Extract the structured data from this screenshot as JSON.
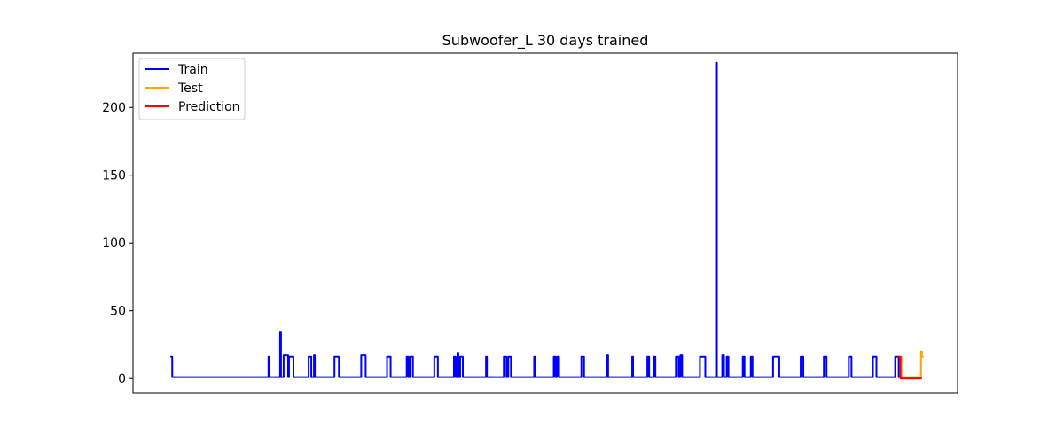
{
  "chart_data": {
    "type": "line",
    "title": "Subwoofer_L 30 days trained",
    "xlabel": "",
    "ylabel": "",
    "x_tick_labels_visible": false,
    "xlim": [
      0,
      925
    ],
    "ylim": [
      -11,
      240
    ],
    "yticks": [
      0,
      50,
      100,
      150,
      200
    ],
    "grid": false,
    "legend": {
      "position": "top-left"
    },
    "series": [
      {
        "name": "Train",
        "color": "#0000ff",
        "points": [
          [
            42,
            16
          ],
          [
            44,
            16
          ],
          [
            44,
            1
          ],
          [
            152,
            1
          ],
          [
            152,
            16
          ],
          [
            153,
            16
          ],
          [
            153,
            1
          ],
          [
            165,
            1
          ],
          [
            165,
            34
          ],
          [
            166,
            34
          ],
          [
            166,
            1
          ],
          [
            169,
            1
          ],
          [
            169,
            17
          ],
          [
            174,
            17
          ],
          [
            174,
            1
          ],
          [
            175,
            1
          ],
          [
            175,
            16
          ],
          [
            180,
            16
          ],
          [
            180,
            1
          ],
          [
            197,
            1
          ],
          [
            197,
            16
          ],
          [
            200,
            16
          ],
          [
            200,
            1
          ],
          [
            203,
            1
          ],
          [
            203,
            17
          ],
          [
            204,
            17
          ],
          [
            204,
            1
          ],
          [
            226,
            1
          ],
          [
            226,
            16
          ],
          [
            231,
            16
          ],
          [
            231,
            1
          ],
          [
            256,
            1
          ],
          [
            256,
            17
          ],
          [
            261,
            17
          ],
          [
            261,
            1
          ],
          [
            285,
            1
          ],
          [
            285,
            16
          ],
          [
            289,
            16
          ],
          [
            289,
            1
          ],
          [
            307,
            1
          ],
          [
            307,
            16
          ],
          [
            309,
            16
          ],
          [
            309,
            1
          ],
          [
            311,
            1
          ],
          [
            311,
            16
          ],
          [
            314,
            16
          ],
          [
            314,
            1
          ],
          [
            338,
            1
          ],
          [
            338,
            16
          ],
          [
            342,
            16
          ],
          [
            342,
            1
          ],
          [
            360,
            1
          ],
          [
            360,
            16
          ],
          [
            362,
            16
          ],
          [
            362,
            1
          ],
          [
            364,
            1
          ],
          [
            364,
            19
          ],
          [
            365,
            19
          ],
          [
            365,
            1
          ],
          [
            367,
            1
          ],
          [
            367,
            16
          ],
          [
            370,
            16
          ],
          [
            370,
            1
          ],
          [
            396,
            1
          ],
          [
            396,
            16
          ],
          [
            397,
            16
          ],
          [
            397,
            1
          ],
          [
            416,
            1
          ],
          [
            416,
            16
          ],
          [
            419,
            16
          ],
          [
            419,
            1
          ],
          [
            421,
            1
          ],
          [
            421,
            16
          ],
          [
            424,
            16
          ],
          [
            424,
            1
          ],
          [
            450,
            1
          ],
          [
            450,
            16
          ],
          [
            451,
            16
          ],
          [
            451,
            1
          ],
          [
            472,
            1
          ],
          [
            472,
            16
          ],
          [
            474,
            16
          ],
          [
            474,
            1
          ],
          [
            476,
            1
          ],
          [
            476,
            16
          ],
          [
            478,
            16
          ],
          [
            478,
            1
          ],
          [
            503,
            1
          ],
          [
            503,
            16
          ],
          [
            506,
            16
          ],
          [
            506,
            1
          ],
          [
            532,
            1
          ],
          [
            532,
            17
          ],
          [
            533,
            17
          ],
          [
            533,
            1
          ],
          [
            560,
            1
          ],
          [
            560,
            16
          ],
          [
            561,
            16
          ],
          [
            561,
            1
          ],
          [
            577,
            1
          ],
          [
            577,
            16
          ],
          [
            579,
            16
          ],
          [
            579,
            1
          ],
          [
            584,
            1
          ],
          [
            584,
            16
          ],
          [
            586,
            16
          ],
          [
            586,
            1
          ],
          [
            609,
            1
          ],
          [
            609,
            16
          ],
          [
            612,
            16
          ],
          [
            612,
            1
          ],
          [
            614,
            1
          ],
          [
            614,
            17
          ],
          [
            616,
            17
          ],
          [
            616,
            1
          ],
          [
            636,
            1
          ],
          [
            636,
            16
          ],
          [
            642,
            16
          ],
          [
            642,
            1
          ],
          [
            654,
            1
          ],
          [
            654,
            233
          ],
          [
            655,
            233
          ],
          [
            655,
            1
          ],
          [
            661,
            1
          ],
          [
            661,
            17
          ],
          [
            663,
            17
          ],
          [
            663,
            1
          ],
          [
            666,
            1
          ],
          [
            666,
            16
          ],
          [
            668,
            16
          ],
          [
            668,
            1
          ],
          [
            684,
            1
          ],
          [
            684,
            16
          ],
          [
            686,
            16
          ],
          [
            686,
            1
          ],
          [
            693,
            1
          ],
          [
            693,
            16
          ],
          [
            695,
            16
          ],
          [
            695,
            1
          ],
          [
            718,
            1
          ],
          [
            718,
            16
          ],
          [
            725,
            16
          ],
          [
            725,
            1
          ],
          [
            749,
            1
          ],
          [
            749,
            16
          ],
          [
            752,
            16
          ],
          [
            752,
            1
          ],
          [
            775,
            1
          ],
          [
            775,
            16
          ],
          [
            778,
            16
          ],
          [
            778,
            1
          ],
          [
            803,
            1
          ],
          [
            803,
            16
          ],
          [
            806,
            16
          ],
          [
            806,
            1
          ],
          [
            830,
            1
          ],
          [
            830,
            16
          ],
          [
            834,
            16
          ],
          [
            834,
            1
          ],
          [
            855,
            1
          ],
          [
            855,
            16
          ],
          [
            859,
            16
          ],
          [
            859,
            1
          ],
          [
            863,
            1
          ]
        ]
      },
      {
        "name": "Test",
        "color": "#ffa500",
        "points": [
          [
            861,
            16
          ],
          [
            862,
            16
          ],
          [
            862,
            1
          ],
          [
            884,
            1
          ],
          [
            884,
            20
          ],
          [
            885,
            20
          ],
          [
            885,
            16
          ],
          [
            887,
            16
          ]
        ]
      },
      {
        "name": "Prediction",
        "color": "#ff0000",
        "points": [
          [
            858,
            16
          ],
          [
            861,
            16
          ],
          [
            861,
            0
          ],
          [
            885,
            0
          ]
        ]
      }
    ]
  }
}
